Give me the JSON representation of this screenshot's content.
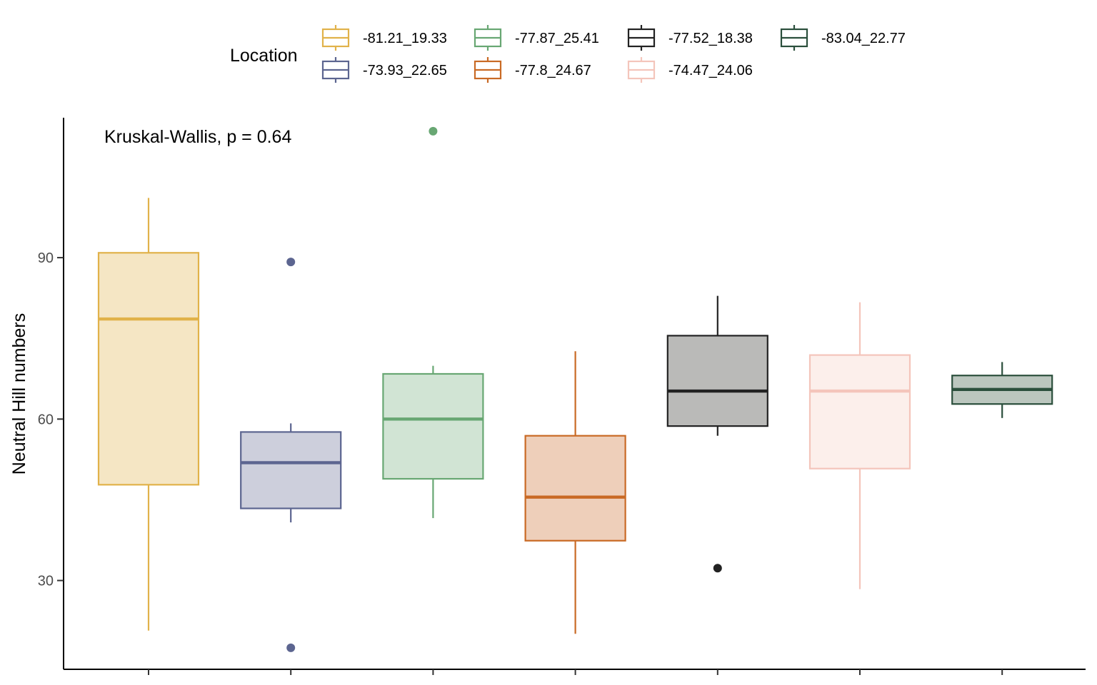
{
  "chart_data": {
    "type": "boxplot",
    "ylabel": "Neutral Hill numbers",
    "xlabel": "",
    "ylim": [
      13.5,
      116
    ],
    "yticks": [
      30,
      60,
      90
    ],
    "annotation": "Kruskal-Wallis, p = 0.64",
    "legend": {
      "title": "Location",
      "position": "top"
    },
    "series": [
      {
        "name": "-81.21_19.33",
        "color": "#E1B24A",
        "fill": "#F5E6C4",
        "whisker_low": 20.7,
        "q1": 47.8,
        "median": 78.6,
        "q3": 90.9,
        "whisker_high": 101.1,
        "outliers": []
      },
      {
        "name": "-73.93_22.65",
        "color": "#5C6590",
        "fill": "#CDCFDC",
        "whisker_low": 40.8,
        "q1": 43.4,
        "median": 51.9,
        "q3": 57.6,
        "whisker_high": 59.2,
        "outliers": [
          89.2,
          17.5
        ]
      },
      {
        "name": "-77.87_25.41",
        "color": "#68A773",
        "fill": "#D1E4D4",
        "whisker_low": 41.6,
        "q1": 48.9,
        "median": 60.0,
        "q3": 68.4,
        "whisker_high": 69.9,
        "outliers": [
          113.5
        ]
      },
      {
        "name": "-77.8_24.67",
        "color": "#C96A25",
        "fill": "#EECFBA",
        "whisker_low": 20.1,
        "q1": 37.4,
        "median": 45.5,
        "q3": 56.9,
        "whisker_high": 72.6,
        "outliers": []
      },
      {
        "name": "-77.52_18.38",
        "color": "#222222",
        "fill": "#BABAB8",
        "whisker_low": 56.9,
        "q1": 58.7,
        "median": 65.2,
        "q3": 75.5,
        "whisker_high": 82.9,
        "outliers": [
          32.3
        ]
      },
      {
        "name": "-74.47_24.06",
        "color": "#F4C5BB",
        "fill": "#FCEFEB",
        "whisker_low": 28.4,
        "q1": 50.8,
        "median": 65.2,
        "q3": 71.9,
        "whisker_high": 81.7,
        "outliers": []
      },
      {
        "name": "-83.04_22.77",
        "color": "#2B4F3C",
        "fill": "#BBC6BE",
        "whisker_low": 60.2,
        "q1": 62.8,
        "median": 65.5,
        "q3": 68.1,
        "whisker_high": 70.6,
        "outliers": []
      }
    ],
    "legend_order": [
      [
        "-81.21_19.33",
        "-77.87_25.41",
        "-77.52_18.38",
        "-83.04_22.77"
      ],
      [
        "-73.93_22.65",
        "-77.8_24.67",
        "-74.47_24.06"
      ]
    ]
  }
}
